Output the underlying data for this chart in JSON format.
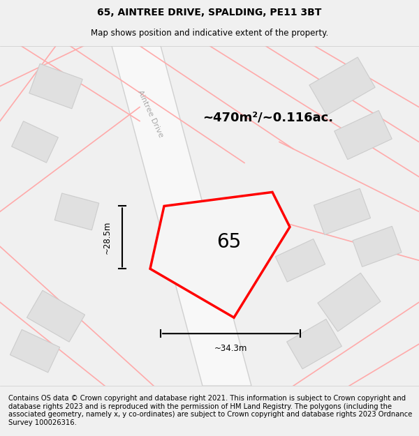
{
  "title": "65, AINTREE DRIVE, SPALDING, PE11 3BT",
  "subtitle": "Map shows position and indicative extent of the property.",
  "area_text": "~470m²/~0.116ac.",
  "label_65": "65",
  "dim_height": "~28.5m",
  "dim_width": "~34.3m",
  "street_label": "Aintree Drive",
  "street_label2": "Aintree Drive",
  "footer": "Contains OS data © Crown copyright and database right 2021. This information is subject to Crown copyright and database rights 2023 and is reproduced with the permission of HM Land Registry. The polygons (including the associated geometry, namely x, y co-ordinates) are subject to Crown copyright and database rights 2023 Ordnance Survey 100026316.",
  "bg_color": "#f0f0f0",
  "map_bg": "#ffffff",
  "plot_color_fill": "#f5f5f5",
  "plot_color_edge": "#ff0000",
  "road_color": "#ffffff",
  "road_edge_color": "#d3d3d3",
  "building_color": "#e0e0e0",
  "building_edge": "#cccccc",
  "pink_line_color": "#ffaaaa",
  "title_fontsize": 10,
  "subtitle_fontsize": 8.5,
  "footer_fontsize": 7.2
}
